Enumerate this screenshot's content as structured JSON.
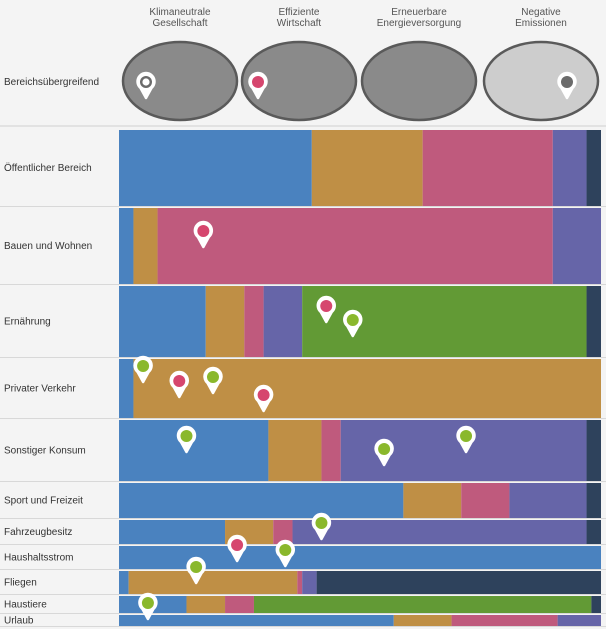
{
  "colors": {
    "blue": "#4a82bf",
    "tan": "#bf8f45",
    "rose": "#bf5a7d",
    "purple": "#6665a8",
    "navy": "#2e425c",
    "green": "#629a35",
    "pin_pink": "#d6466e",
    "pin_green": "#8ab82c",
    "pin_gray": "#6b6b6b",
    "ellipse_dark": "#8a8a8a",
    "ellipse_light": "#cdcdcd"
  },
  "chart_data": {
    "type": "bar",
    "stacked": true,
    "orientation": "horizontal",
    "columns": [
      {
        "label": [
          "Klimaneutrale",
          "Gesellschaft"
        ],
        "style": "dark"
      },
      {
        "label": [
          "Effiziente",
          "Wirtschaft"
        ],
        "style": "dark"
      },
      {
        "label": [
          "Erneuerbare",
          "Energieversorgung"
        ],
        "style": "dark"
      },
      {
        "label": [
          "Negative",
          "Emissionen"
        ],
        "style": "light"
      }
    ],
    "header_row": {
      "label": "Bereichsübergreifend",
      "markers": [
        {
          "column": 0,
          "color": "gray_hollow"
        },
        {
          "column": 1,
          "color": "pink"
        },
        {
          "column": 3,
          "color": "gray"
        }
      ]
    },
    "rows": [
      {
        "label": "Öffentlicher Bereich",
        "segments": [
          [
            "blue",
            0.4
          ],
          [
            "tan",
            0.23
          ],
          [
            "rose",
            0.27
          ],
          [
            "purple",
            0.07
          ],
          [
            "navy",
            0.03
          ]
        ],
        "markers": []
      },
      {
        "label": "Bauen und Wohnen",
        "segments": [
          [
            "blue",
            0.03
          ],
          [
            "tan",
            0.05
          ],
          [
            "rose",
            0.82
          ],
          [
            "purple",
            0.1
          ]
        ],
        "markers": [
          {
            "x": 0.175,
            "color": "pink"
          }
        ]
      },
      {
        "label": "Ernährung",
        "segments": [
          [
            "blue",
            0.18
          ],
          [
            "tan",
            0.08
          ],
          [
            "rose",
            0.04
          ],
          [
            "purple",
            0.08
          ],
          [
            "green",
            0.59
          ],
          [
            "navy",
            0.03
          ]
        ],
        "markers": [
          {
            "x": 0.43,
            "color": "pink"
          },
          {
            "x": 0.485,
            "color": "green"
          }
        ]
      },
      {
        "label": "Privater Verkehr",
        "segments": [
          [
            "blue",
            0.03
          ],
          [
            "tan",
            0.97
          ]
        ],
        "markers": [
          {
            "x": 0.05,
            "color": "green"
          },
          {
            "x": 0.125,
            "color": "pink"
          },
          {
            "x": 0.195,
            "color": "green"
          },
          {
            "x": 0.3,
            "color": "pink"
          }
        ]
      },
      {
        "label": "Sonstiger Konsum",
        "segments": [
          [
            "blue",
            0.31
          ],
          [
            "tan",
            0.11
          ],
          [
            "rose",
            0.04
          ],
          [
            "purple",
            0.51
          ],
          [
            "navy",
            0.03
          ]
        ],
        "markers": [
          {
            "x": 0.14,
            "color": "green"
          },
          {
            "x": 0.55,
            "color": "green"
          },
          {
            "x": 0.72,
            "color": "green"
          }
        ]
      },
      {
        "label": "Sport und Freizeit",
        "segments": [
          [
            "blue",
            0.59
          ],
          [
            "tan",
            0.12
          ],
          [
            "rose",
            0.1
          ],
          [
            "purple",
            0.16
          ],
          [
            "navy",
            0.03
          ]
        ],
        "markers": []
      },
      {
        "label": "Fahrzeugbesitz",
        "segments": [
          [
            "blue",
            0.22
          ],
          [
            "tan",
            0.1
          ],
          [
            "rose",
            0.04
          ],
          [
            "purple",
            0.61
          ],
          [
            "navy",
            0.03
          ]
        ],
        "markers": [
          {
            "x": 0.42,
            "color": "green"
          }
        ]
      },
      {
        "label": "Haushaltsstrom",
        "segments": [
          [
            "blue",
            1.0
          ]
        ],
        "markers": [
          {
            "x": 0.245,
            "color": "pink"
          },
          {
            "x": 0.345,
            "color": "green"
          }
        ]
      },
      {
        "label": "Fliegen",
        "segments": [
          [
            "blue",
            0.02
          ],
          [
            "tan",
            0.35
          ],
          [
            "rose",
            0.01
          ],
          [
            "purple",
            0.03
          ],
          [
            "navy",
            0.59
          ]
        ],
        "markers": [
          {
            "x": 0.16,
            "color": "green"
          }
        ]
      },
      {
        "label": "Haustiere",
        "segments": [
          [
            "blue",
            0.14
          ],
          [
            "tan",
            0.08
          ],
          [
            "rose",
            0.06
          ],
          [
            "green",
            0.7
          ],
          [
            "navy",
            0.02
          ]
        ],
        "markers": [
          {
            "x": 0.06,
            "color": "green"
          }
        ]
      },
      {
        "label": "Urlaub",
        "segments": [
          [
            "blue",
            0.57
          ],
          [
            "tan",
            0.12
          ],
          [
            "rose",
            0.22
          ],
          [
            "purple",
            0.09
          ]
        ],
        "markers": []
      }
    ]
  }
}
